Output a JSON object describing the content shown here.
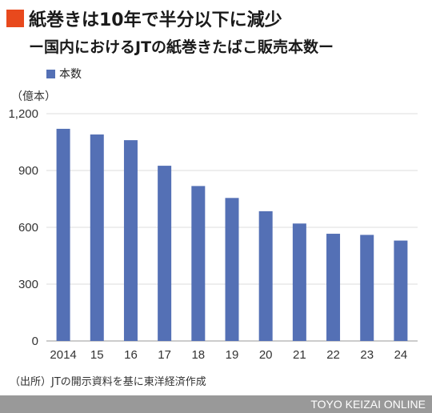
{
  "header": {
    "title": "紙巻きは10年で半分以下に減少",
    "subtitle": "ー国内におけるJTの紙巻きたばこ販売本数ー"
  },
  "legend": {
    "label": "本数"
  },
  "unit": "（億本）",
  "source": "（出所）JTの開示資料を基に東洋経済作成",
  "footer": {
    "credit": "TOYO KEIZAI ONLINE"
  },
  "colors": {
    "bar": "#5470b5",
    "accent": "#e8491d",
    "footer": "#999999"
  },
  "chart_data": {
    "type": "bar",
    "categories": [
      "2014",
      "15",
      "16",
      "17",
      "18",
      "19",
      "20",
      "21",
      "22",
      "23",
      "24"
    ],
    "series": [
      {
        "name": "本数",
        "values": [
          1120,
          1090,
          1060,
          925,
          818,
          755,
          685,
          620,
          566,
          560,
          530
        ]
      }
    ],
    "ylabel": "（億本）",
    "ylim": [
      0,
      1200
    ],
    "yticks": [
      0,
      300,
      600,
      900,
      1200
    ],
    "ytick_labels": [
      "0",
      "300",
      "600",
      "900",
      "1,200"
    ],
    "grid": true,
    "legend_position": "top-left"
  }
}
